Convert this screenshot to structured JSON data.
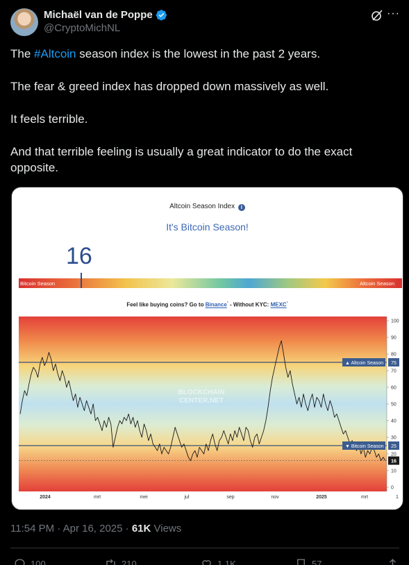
{
  "author": {
    "name": "Michaël van de Poppe",
    "handle": "@CryptoMichNL",
    "verified_color": "#1d9bf0"
  },
  "tweet": {
    "p1_before": "The ",
    "p1_hashtag": "#Altcoin",
    "p1_after": " season index is the lowest in the past 2 years.",
    "p2": "The fear & greed index has dropped down massively as well.",
    "p3": "It feels terrible.",
    "p4": "And that terrible feeling is usually a great indicator to do the exact opposite."
  },
  "media": {
    "title": "Altcoin Season Index",
    "info_glyph": "i",
    "season_label": "It's Bitcoin Season!",
    "current_value": "16",
    "bar_left_label": "Bitcoin Season",
    "bar_right_label": "Altcoin Season",
    "promo_text": "Feel like buying coins? Go to ",
    "promo_link1": "Binance",
    "promo_sup": "*",
    "promo_mid": " - Without KYC: ",
    "promo_link2": "MEXC",
    "watermark_line1": "BLOCKCHAIN",
    "watermark_line2": "CENTER.NET"
  },
  "chart_data": {
    "type": "line",
    "title": "Altcoin Season Index",
    "ylim": [
      0,
      100
    ],
    "yticks": [
      "100",
      "90",
      "80",
      "70",
      "60",
      "50",
      "40",
      "30",
      "20",
      "10",
      "0"
    ],
    "xticks": [
      "2024",
      "mrt",
      "mei",
      "jul",
      "sep",
      "nov",
      "2025",
      "mrt",
      "1"
    ],
    "xticks_bold": [
      "2024",
      "2025"
    ],
    "reference_lines": [
      {
        "label": "▲ Altcoin Season",
        "value": 75
      },
      {
        "label": "▼ Bitcoin Season",
        "value": 25
      }
    ],
    "current": {
      "label": "16",
      "value": 16
    },
    "grid": false,
    "series": [
      {
        "values": [
          44,
          52,
          58,
          55,
          62,
          68,
          72,
          70,
          66,
          74,
          78,
          73,
          76,
          81,
          77,
          70,
          74,
          68,
          64,
          70,
          66,
          60,
          64,
          58,
          52,
          56,
          48,
          54,
          50,
          46,
          52,
          48,
          44,
          50,
          40,
          42,
          38,
          34,
          40,
          36,
          42,
          38,
          24,
          30,
          36,
          40,
          38,
          42,
          40,
          44,
          38,
          42,
          36,
          40,
          34,
          30,
          38,
          34,
          28,
          32,
          26,
          24,
          22,
          26,
          20,
          24,
          22,
          20,
          24,
          30,
          36,
          32,
          28,
          24,
          26,
          22,
          18,
          16,
          20,
          22,
          18,
          24,
          22,
          20,
          26,
          22,
          28,
          32,
          26,
          22,
          28,
          30,
          34,
          30,
          26,
          32,
          28,
          34,
          30,
          36,
          32,
          28,
          36,
          34,
          28,
          24,
          30,
          32,
          26,
          30,
          34,
          40,
          48,
          58,
          66,
          72,
          78,
          84,
          88,
          80,
          72,
          66,
          70,
          62,
          56,
          50,
          54,
          48,
          56,
          50,
          46,
          52,
          56,
          48,
          54,
          52,
          48,
          56,
          50,
          46,
          52,
          48,
          42,
          44,
          40,
          36,
          32,
          34,
          30,
          26,
          28,
          24,
          22,
          26,
          20,
          24,
          18,
          22,
          20,
          24,
          22,
          18,
          20,
          16,
          18,
          16
        ]
      }
    ]
  },
  "meta": {
    "time": "11:54 PM · Apr 16, 2025 · ",
    "views_count": "61K",
    "views_label": " Views"
  },
  "actions": {
    "replies": "100",
    "reposts": "210",
    "likes": "1.1K",
    "bookmarks": "57"
  }
}
